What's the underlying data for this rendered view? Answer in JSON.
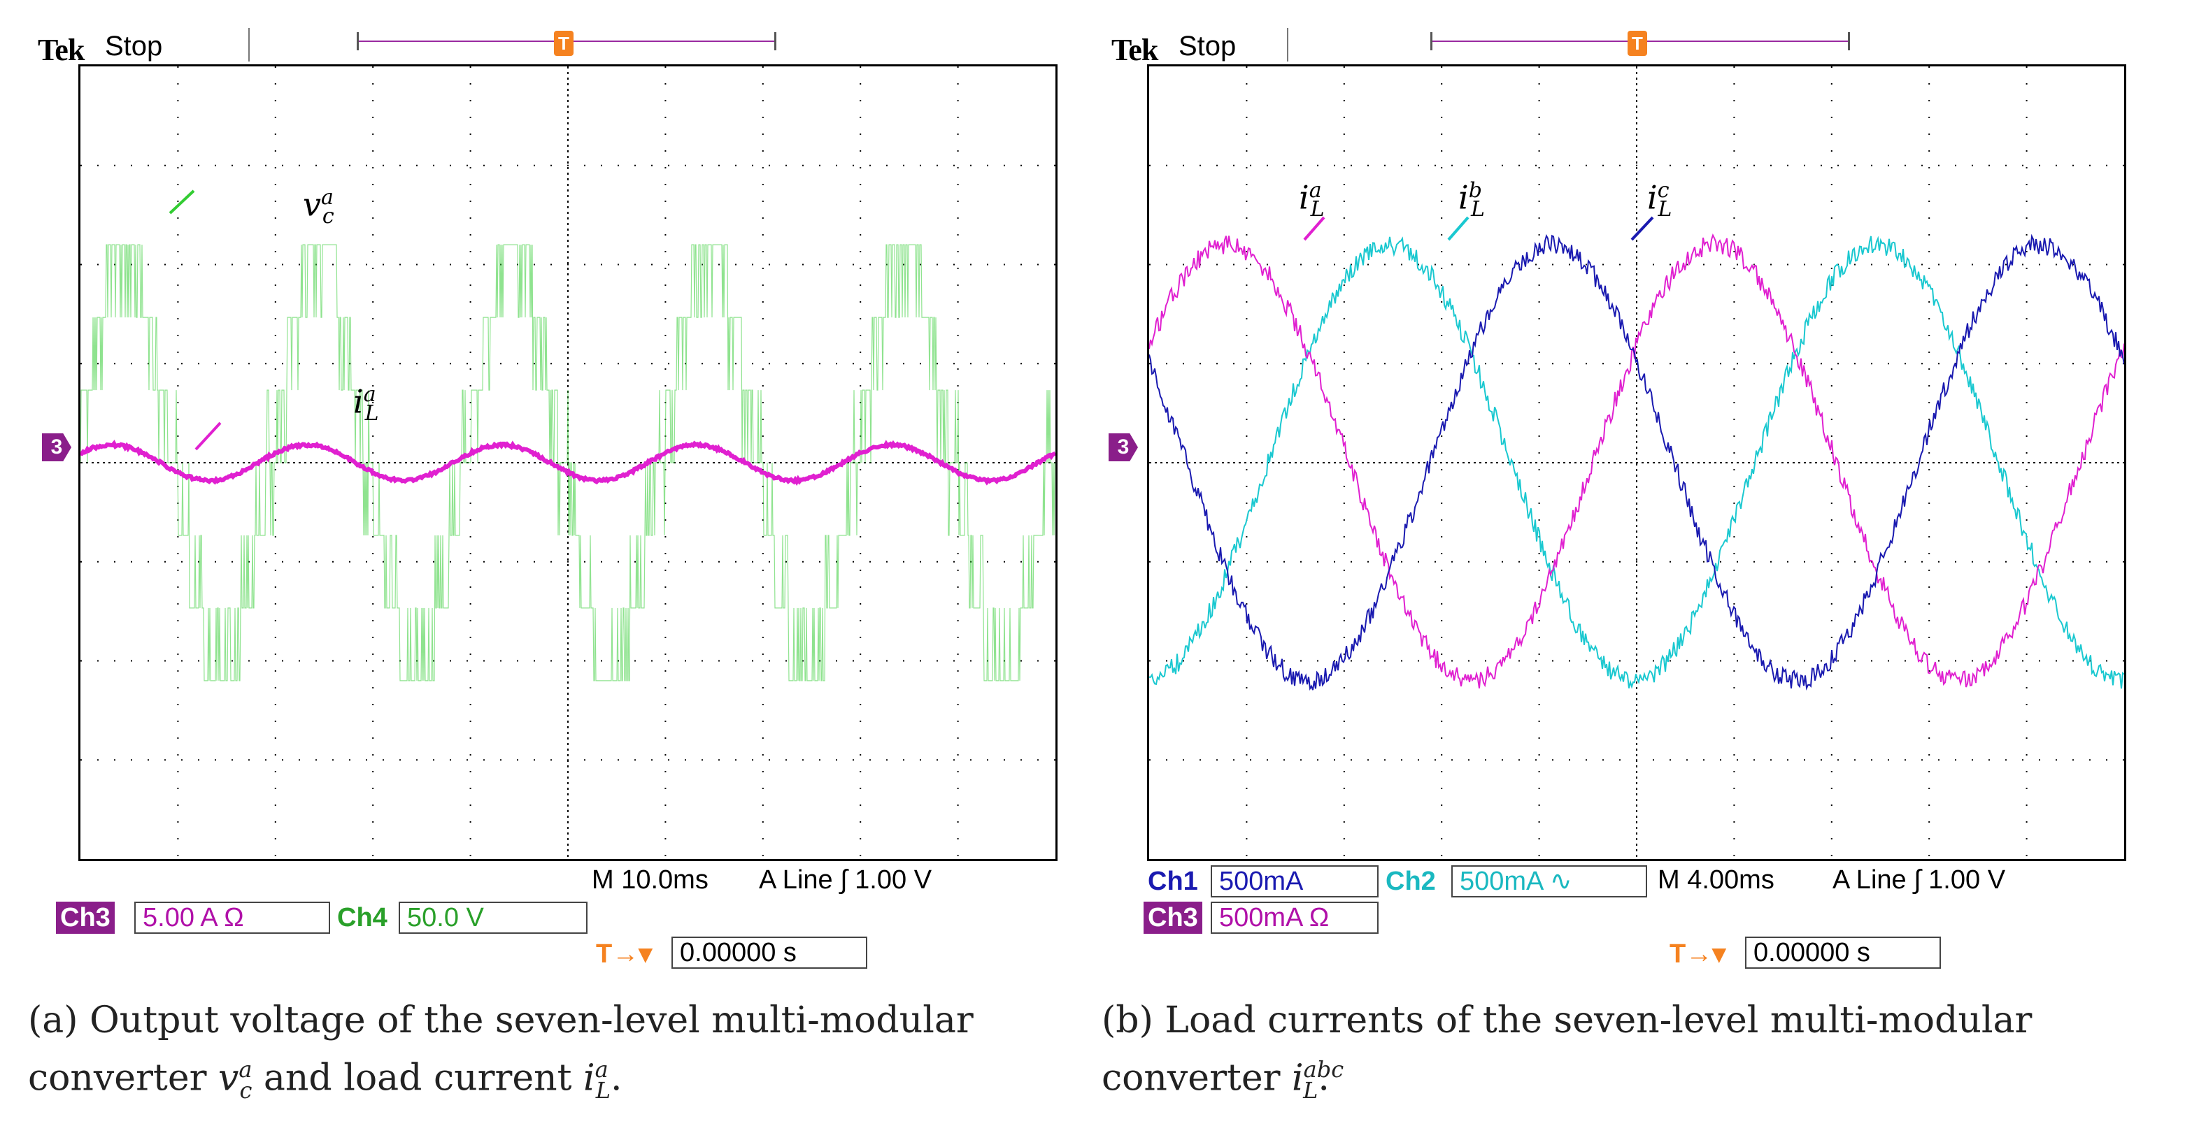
{
  "chart_data": [
    {
      "type": "line",
      "title": "Output voltage of the seven-level multi-modular converter v_c^a and load current i_L^a",
      "brand": "Tek",
      "run_state": "Stop",
      "timebase": "M 10.0ms",
      "trigger": "A  Line  ∫  1.00 V",
      "trigger_offset": "0.00000 s",
      "channels": [
        {
          "name": "Ch3",
          "scale": "5.00 A Ω",
          "color": "#e020d0"
        },
        {
          "name": "Ch4",
          "scale": "50.0 V",
          "color": "#33cc33"
        }
      ],
      "x_div": 10,
      "y_div": 8,
      "xlim": [
        0,
        10
      ],
      "ylim": [
        -4,
        4
      ],
      "series": [
        {
          "name": "v_c^a",
          "type": "staircase",
          "levels": [
            -3,
            -2,
            -1,
            0,
            1,
            2,
            3
          ],
          "color": "#33cc33",
          "cycles": 5,
          "amplitude_div": 2.0
        },
        {
          "name": "i_L^a",
          "type": "sine",
          "cycles": 5,
          "amplitude_div": 0.18,
          "color": "#e020d0"
        }
      ],
      "annotations": [
        {
          "text": "v",
          "sup": "a",
          "sub": "c"
        },
        {
          "text": "i",
          "sup": "a",
          "sub": "L"
        }
      ],
      "trace_marker": "3"
    },
    {
      "type": "line",
      "title": "Load currents of the seven-level multi-modular converter i_L^abc",
      "brand": "Tek",
      "run_state": "Stop",
      "timebase": "M 4.00ms",
      "trigger": "A  Line  ∫  1.00 V",
      "trigger_offset": "0.00000 s",
      "channels": [
        {
          "name": "Ch1",
          "scale": "500mA",
          "color": "#1a1ab0"
        },
        {
          "name": "Ch2",
          "scale": "500mA ∿",
          "color": "#1ac8d0"
        },
        {
          "name": "Ch3",
          "scale": "500mA Ω",
          "color": "#e020d0"
        }
      ],
      "x_div": 10,
      "y_div": 8,
      "xlim": [
        0,
        10
      ],
      "ylim": [
        -4,
        4
      ],
      "series": [
        {
          "name": "i_L^a",
          "type": "sine",
          "cycles": 2,
          "amplitude_div": 2.2,
          "phase_deg": 0,
          "color": "#e020d0"
        },
        {
          "name": "i_L^b",
          "type": "sine",
          "cycles": 2,
          "amplitude_div": 2.2,
          "phase_deg": -120,
          "color": "#1ac8d0"
        },
        {
          "name": "i_L^c",
          "type": "sine",
          "cycles": 2,
          "amplitude_div": 2.2,
          "phase_deg": 120,
          "color": "#1a1ab0"
        }
      ],
      "annotations": [
        {
          "text": "i",
          "sup": "a",
          "sub": "L"
        },
        {
          "text": "i",
          "sup": "b",
          "sub": "L"
        },
        {
          "text": "i",
          "sup": "c",
          "sub": "L"
        }
      ],
      "trace_marker": "3"
    }
  ],
  "captions": {
    "a_prefix": "(a)",
    "a_line1": "Output voltage of the seven-level multi-modular",
    "a_line2": "converter",
    "a_and": "and load current",
    "b_prefix": "(b)",
    "b_line1": "Load currents of the seven-level multi-modular",
    "b_line2": "converter"
  }
}
